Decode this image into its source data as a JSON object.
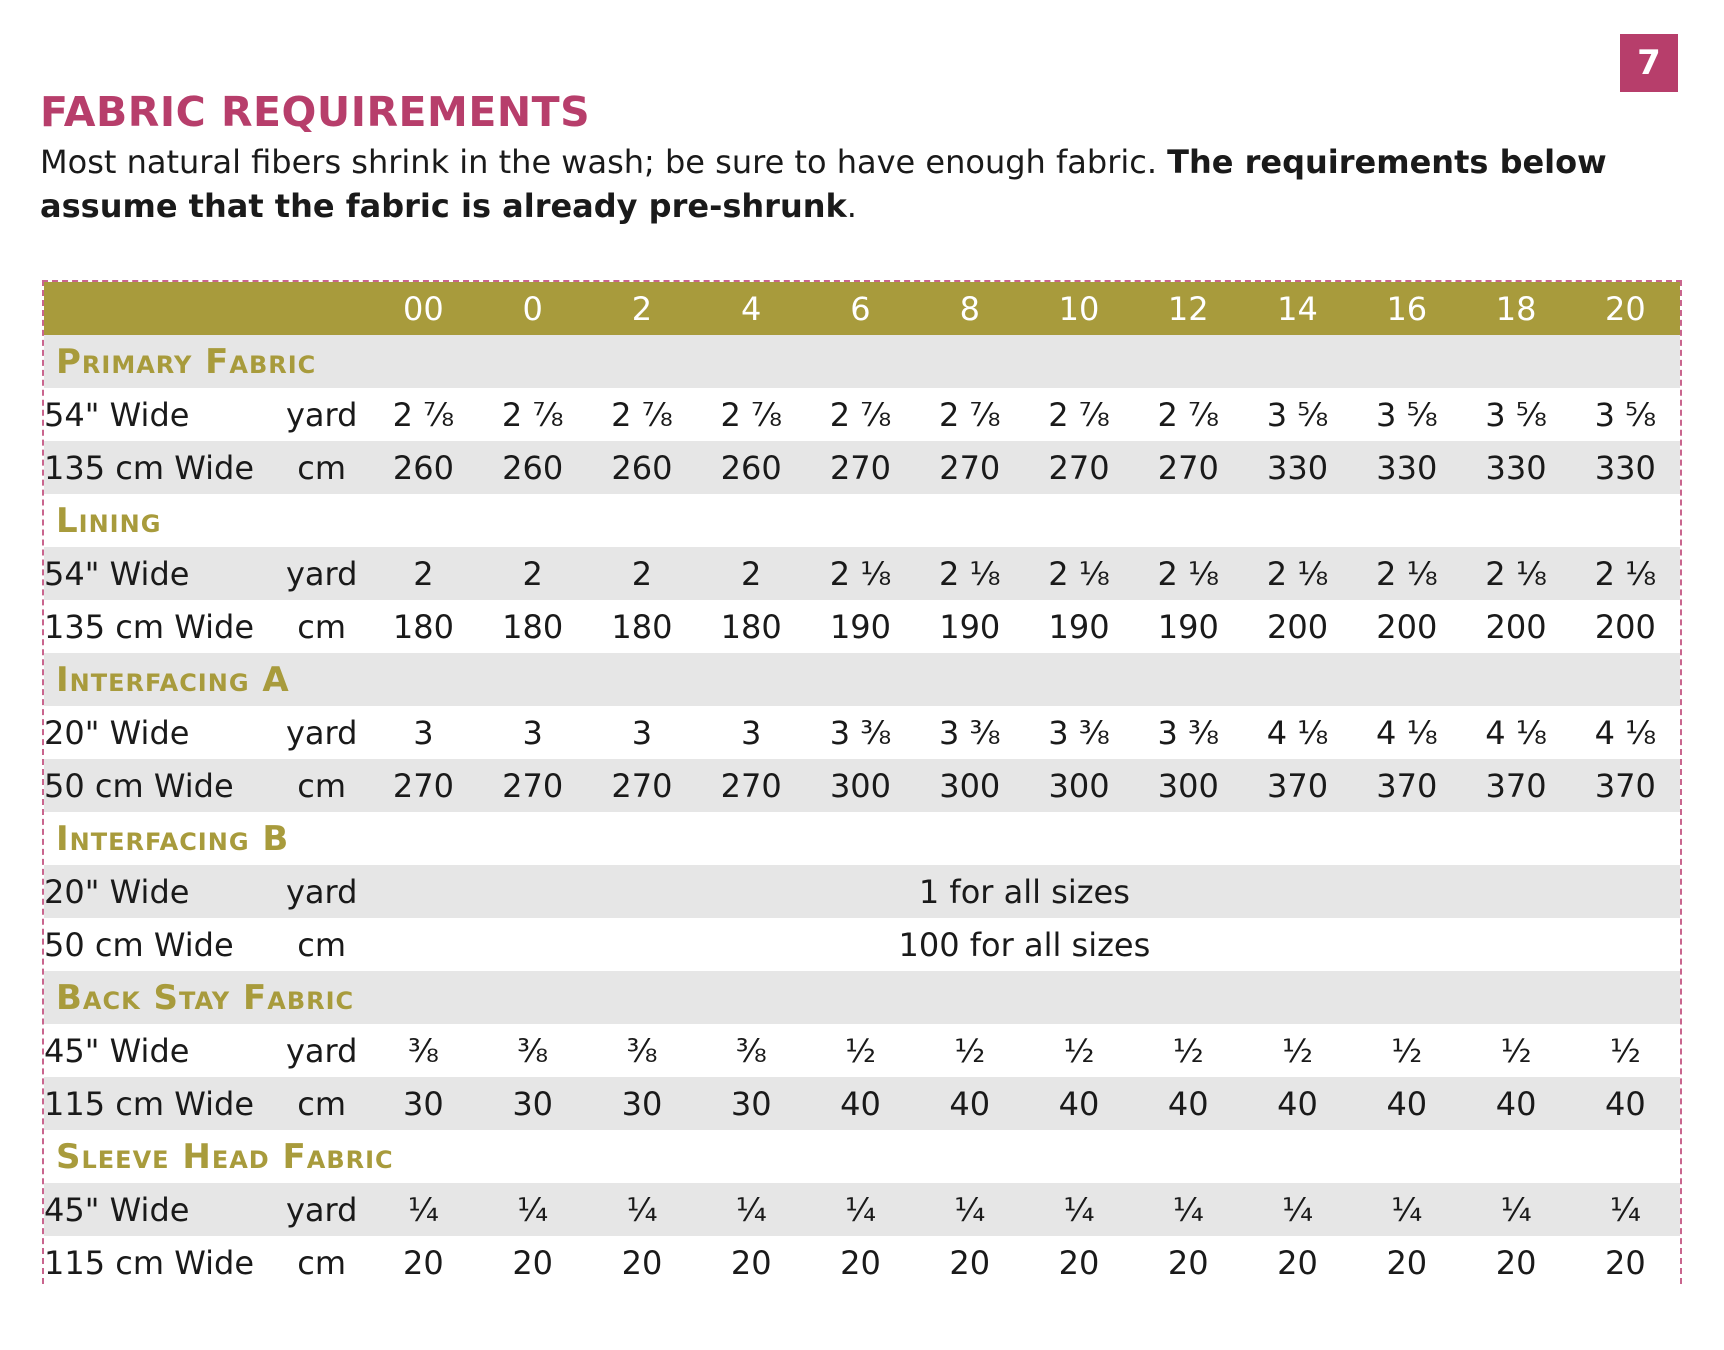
{
  "page_number": "7",
  "title": "FABRIC REQUIREMENTS",
  "intro": {
    "normal": "Most natural fibers shrink in the wash; be sure to have enough fabric. ",
    "bold": "The requirements below assume that the fabric is already pre-shrunk",
    "end": "."
  },
  "sizes": [
    "00",
    "0",
    "2",
    "4",
    "6",
    "8",
    "10",
    "12",
    "14",
    "16",
    "18",
    "20"
  ],
  "sections": [
    {
      "name": "Primary Fabric",
      "rows": [
        {
          "label": "54\" Wide",
          "unit": "yard",
          "values": [
            "2 ⅞",
            "2 ⅞",
            "2 ⅞",
            "2 ⅞",
            "2 ⅞",
            "2 ⅞",
            "2 ⅞",
            "2 ⅞",
            "3 ⅝",
            "3 ⅝",
            "3 ⅝",
            "3 ⅝"
          ]
        },
        {
          "label": "135 cm Wide",
          "unit": "cm",
          "values": [
            "260",
            "260",
            "260",
            "260",
            "270",
            "270",
            "270",
            "270",
            "330",
            "330",
            "330",
            "330"
          ]
        }
      ]
    },
    {
      "name": "Lining",
      "rows": [
        {
          "label": "54\" Wide",
          "unit": "yard",
          "values": [
            "2",
            "2",
            "2",
            "2",
            "2 ⅛",
            "2 ⅛",
            "2 ⅛",
            "2 ⅛",
            "2 ⅛",
            "2 ⅛",
            "2 ⅛",
            "2 ⅛"
          ]
        },
        {
          "label": "135 cm Wide",
          "unit": "cm",
          "values": [
            "180",
            "180",
            "180",
            "180",
            "190",
            "190",
            "190",
            "190",
            "200",
            "200",
            "200",
            "200"
          ]
        }
      ]
    },
    {
      "name": "Interfacing A",
      "rows": [
        {
          "label": "20\" Wide",
          "unit": "yard",
          "values": [
            "3",
            "3",
            "3",
            "3",
            "3 ⅜",
            "3 ⅜",
            "3 ⅜",
            "3 ⅜",
            "4 ⅛",
            "4 ⅛",
            "4 ⅛",
            "4 ⅛"
          ]
        },
        {
          "label": "50 cm Wide",
          "unit": "cm",
          "values": [
            "270",
            "270",
            "270",
            "270",
            "300",
            "300",
            "300",
            "300",
            "370",
            "370",
            "370",
            "370"
          ]
        }
      ]
    },
    {
      "name": "Interfacing B",
      "rows": [
        {
          "label": "20\" Wide",
          "unit": "yard",
          "span": "1 for all sizes"
        },
        {
          "label": "50 cm Wide",
          "unit": "cm",
          "span": "100 for all sizes"
        }
      ]
    },
    {
      "name": "Back Stay Fabric",
      "rows": [
        {
          "label": "45\" Wide",
          "unit": "yard",
          "values": [
            "⅜",
            "⅜",
            "⅜",
            "⅜",
            "½",
            "½",
            "½",
            "½",
            "½",
            "½",
            "½",
            "½"
          ]
        },
        {
          "label": "115 cm Wide",
          "unit": "cm",
          "values": [
            "30",
            "30",
            "30",
            "30",
            "40",
            "40",
            "40",
            "40",
            "40",
            "40",
            "40",
            "40"
          ]
        }
      ]
    },
    {
      "name": "Sleeve Head Fabric",
      "rows": [
        {
          "label": "45\" Wide",
          "unit": "yard",
          "values": [
            "¼",
            "¼",
            "¼",
            "¼",
            "¼",
            "¼",
            "¼",
            "¼",
            "¼",
            "¼",
            "¼",
            "¼"
          ]
        },
        {
          "label": "115 cm Wide",
          "unit": "cm",
          "values": [
            "20",
            "20",
            "20",
            "20",
            "20",
            "20",
            "20",
            "20",
            "20",
            "20",
            "20",
            "20"
          ]
        }
      ]
    }
  ],
  "colors": {
    "accent_pink": "#b73e6b",
    "header_olive": "#a89b3c",
    "row_grey": "#e6e6e6"
  }
}
